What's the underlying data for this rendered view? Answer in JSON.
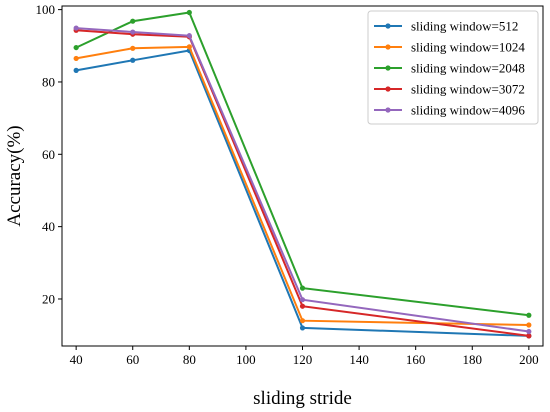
{
  "chart_data": {
    "type": "line",
    "title": "",
    "xlabel": "sliding stride",
    "ylabel": "Accuracy(%)",
    "xlim": [
      35,
      205
    ],
    "ylim": [
      7,
      101
    ],
    "xticks": [
      40,
      60,
      80,
      100,
      120,
      140,
      160,
      180,
      200
    ],
    "yticks": [
      20,
      40,
      60,
      80,
      100
    ],
    "grid": false,
    "legend": "top-right",
    "x": [
      40,
      60,
      80,
      120,
      200
    ],
    "series": [
      {
        "name": "sliding window=512",
        "color": "#1f77b4",
        "values": [
          83.2,
          86.0,
          88.7,
          12.0,
          9.8
        ]
      },
      {
        "name": "sliding window=1024",
        "color": "#ff7f0e",
        "values": [
          86.5,
          89.3,
          89.7,
          14.0,
          12.8
        ]
      },
      {
        "name": "sliding window=2048",
        "color": "#2ca02c",
        "values": [
          89.5,
          96.8,
          99.2,
          23.0,
          15.5
        ]
      },
      {
        "name": "sliding window=3072",
        "color": "#d62728",
        "values": [
          94.3,
          93.2,
          92.5,
          18.0,
          9.8
        ]
      },
      {
        "name": "sliding window=4096",
        "color": "#9467bd",
        "values": [
          94.9,
          93.8,
          92.8,
          19.8,
          11.0
        ]
      }
    ]
  }
}
